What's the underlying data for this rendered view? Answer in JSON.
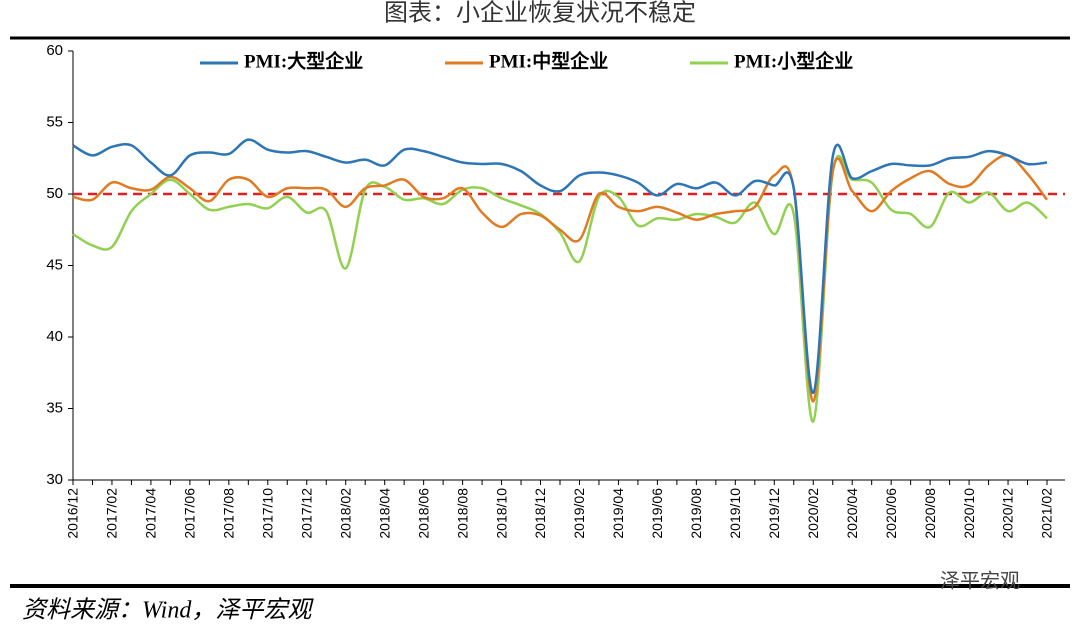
{
  "chart_data": {
    "type": "line",
    "title": "图表：小企业恢复状况不稳定",
    "source": "资料来源：Wind，泽平宏观",
    "watermark": "泽平宏观",
    "categories": [
      "2016/12",
      null,
      "2017/02",
      null,
      "2017/04",
      null,
      "2017/06",
      null,
      "2017/08",
      null,
      "2017/10",
      null,
      "2017/12",
      null,
      "2018/02",
      null,
      "2018/04",
      null,
      "2018/06",
      null,
      "2018/08",
      null,
      "2018/10",
      null,
      "2018/12",
      null,
      "2019/02",
      null,
      "2019/04",
      null,
      "2019/06",
      null,
      "2019/08",
      null,
      "2019/10",
      null,
      "2019/12",
      null,
      "2020/02",
      null,
      "2020/04",
      null,
      "2020/06",
      null,
      "2020/08",
      null,
      "2020/10",
      null,
      "2020/12",
      null,
      "2021/02"
    ],
    "series": [
      {
        "name": "PMI:大型企业",
        "color": "#2e75b6",
        "values": [
          53.4,
          52.7,
          53.3,
          53.4,
          52.2,
          51.3,
          52.7,
          52.9,
          52.8,
          53.8,
          53.1,
          52.9,
          53.0,
          52.6,
          52.2,
          52.4,
          52.0,
          53.1,
          53.0,
          52.6,
          52.2,
          52.1,
          52.1,
          51.6,
          50.6,
          50.2,
          51.3,
          51.5,
          51.3,
          50.8,
          49.9,
          50.7,
          50.4,
          50.8,
          49.9,
          50.9,
          50.6,
          50.4,
          36.1,
          52.6,
          51.1,
          51.6,
          52.1,
          52.0,
          52.0,
          52.5,
          52.6,
          53.0,
          52.7,
          52.1,
          52.2
        ]
      },
      {
        "name": "PMI:中型企业",
        "color": "#e07b24",
        "values": [
          49.8,
          49.6,
          50.8,
          50.4,
          50.3,
          51.2,
          50.4,
          49.5,
          51.0,
          51.0,
          49.8,
          50.4,
          50.4,
          50.3,
          49.1,
          50.4,
          50.6,
          51.0,
          49.8,
          49.7,
          50.4,
          48.7,
          47.7,
          48.6,
          48.5,
          47.5,
          46.8,
          50.0,
          49.1,
          48.8,
          49.1,
          48.7,
          48.2,
          48.6,
          48.8,
          49.1,
          51.3,
          50.4,
          35.5,
          51.6,
          50.2,
          48.8,
          50.2,
          51.1,
          51.6,
          50.7,
          50.6,
          52.0,
          52.7,
          51.4,
          49.6
        ]
      },
      {
        "name": "PMI:小型企业",
        "color": "#92d050",
        "values": [
          47.2,
          46.4,
          46.3,
          48.8,
          50.0,
          51.0,
          50.0,
          48.9,
          49.1,
          49.3,
          49.0,
          49.8,
          48.7,
          48.8,
          44.8,
          50.3,
          50.5,
          49.6,
          49.7,
          49.3,
          50.3,
          50.4,
          49.7,
          49.2,
          48.6,
          47.3,
          45.3,
          49.8,
          49.8,
          47.8,
          48.3,
          48.2,
          48.6,
          48.4,
          48.0,
          49.4,
          47.2,
          48.6,
          34.1,
          51.5,
          51.0,
          50.8,
          48.9,
          48.6,
          47.7,
          50.1,
          49.4,
          50.1,
          48.8,
          49.4,
          48.3
        ]
      }
    ],
    "reference_line": {
      "value": 50,
      "color": "#e02020"
    },
    "ylim": [
      30,
      60
    ],
    "yticks": [
      30,
      35,
      40,
      45,
      50,
      55,
      60
    ],
    "legend": "top"
  }
}
